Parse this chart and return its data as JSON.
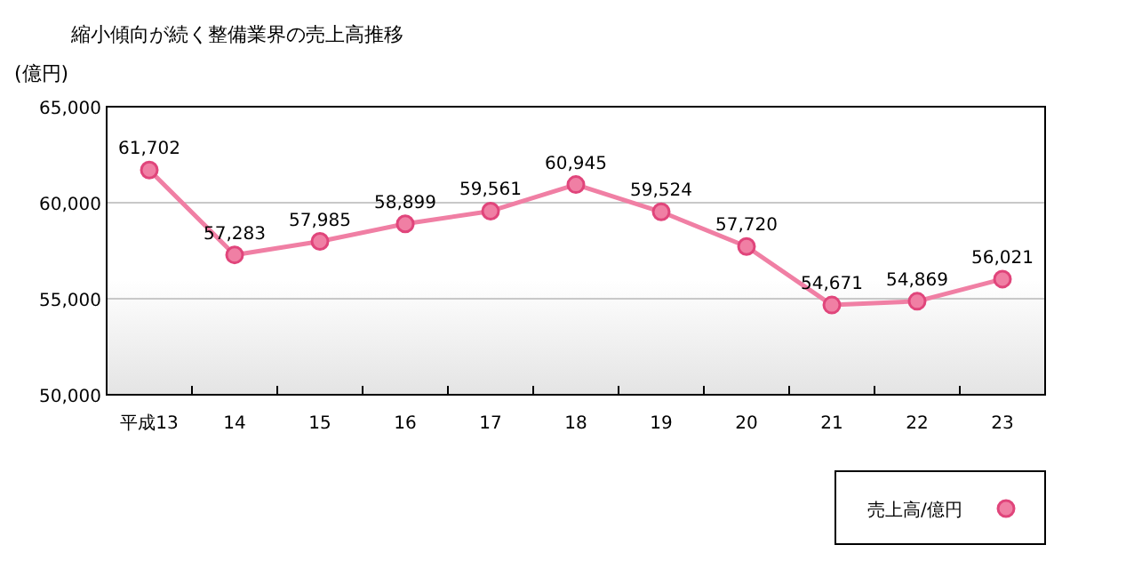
{
  "chart_data": {
    "type": "line",
    "title": "縮小傾向が続く整備業界の売上高推移",
    "ylabel": "(億円)",
    "categories": [
      "平成13",
      "14",
      "15",
      "16",
      "17",
      "18",
      "19",
      "20",
      "21",
      "22",
      "23"
    ],
    "series": [
      {
        "name": "売上高/億円",
        "color": "#f07fa4",
        "values": [
          61702,
          57283,
          57985,
          58899,
          59561,
          60945,
          59524,
          57720,
          54671,
          54869,
          56021
        ],
        "value_labels": [
          "61,702",
          "57,283",
          "57,985",
          "58,899",
          "59,561",
          "60,945",
          "59,524",
          "57,720",
          "54,671",
          "54,869",
          "56,021"
        ]
      }
    ],
    "ylim": [
      50000,
      65000
    ],
    "yticks": [
      {
        "value": 50000,
        "label": "50,000"
      },
      {
        "value": 55000,
        "label": "55,000"
      },
      {
        "value": 60000,
        "label": "60,000"
      },
      {
        "value": 65000,
        "label": "65,000"
      }
    ],
    "grid": "y",
    "legend": "bottom right",
    "marker": "circle"
  }
}
